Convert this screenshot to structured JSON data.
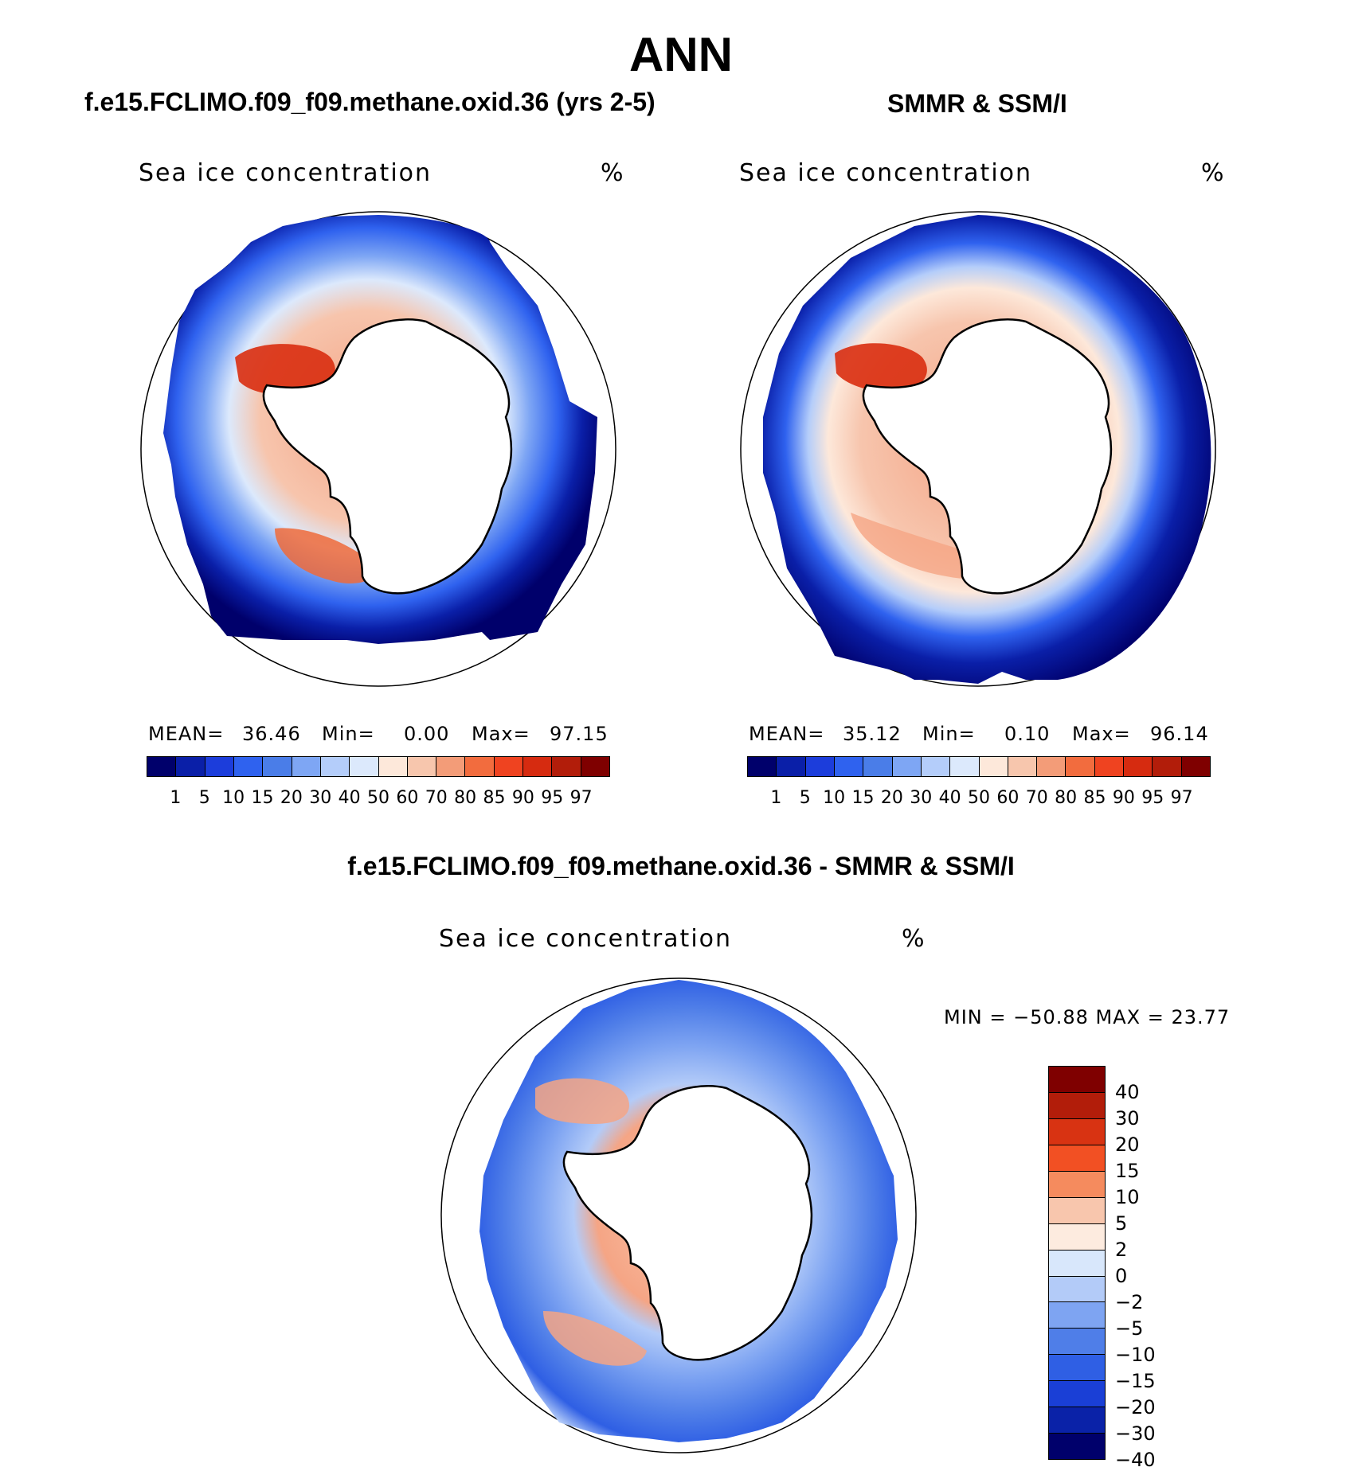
{
  "title": "ANN",
  "panels": [
    {
      "subtitle": "f.e15.FCLIMO.f09_f09.methane.oxid.36 (yrs 2-5)",
      "field": "Sea ice concentration",
      "units": "%",
      "mean_label": "MEAN=",
      "mean": "36.46",
      "min_label": "Min=",
      "min": "0.00",
      "max_label": "Max=",
      "max": "97.15"
    },
    {
      "subtitle": "SMMR & SSM/I",
      "field": "Sea ice concentration",
      "units": "%",
      "mean_label": "MEAN=",
      "mean": "35.12",
      "min_label": "Min=",
      "min": "0.10",
      "max_label": "Max=",
      "max": "96.14"
    },
    {
      "subtitle": "f.e15.FCLIMO.f09_f09.methane.oxid.36 - SMMR & SSM/I",
      "field": "Sea ice concentration",
      "units": "%",
      "minmax": "MIN = −50.88 MAX =   23.77"
    }
  ],
  "colorbar_abs": {
    "colors": [
      "#00006b",
      "#0a1fa8",
      "#1c3ddb",
      "#2f62ef",
      "#4a7de8",
      "#7ea6f4",
      "#b4cdfa",
      "#dce9fc",
      "#fde8da",
      "#f7c6ad",
      "#f39c78",
      "#f26c3e",
      "#ef4320",
      "#d62b10",
      "#b21d0a",
      "#7f0000"
    ],
    "ticks": [
      "1",
      "5",
      "10",
      "15",
      "20",
      "30",
      "40",
      "50",
      "60",
      "70",
      "80",
      "85",
      "90",
      "95",
      "97"
    ]
  },
  "colorbar_diff": {
    "colors": [
      "#7f0000",
      "#b21d0a",
      "#d83312",
      "#f25023",
      "#f58b5e",
      "#f8c6ad",
      "#fdebdf",
      "#d8e7fb",
      "#b3cbf8",
      "#7ea4f2",
      "#4f7ee8",
      "#2f5fe4",
      "#1a3fd6",
      "#0a22a8",
      "#00006b"
    ],
    "ticks": [
      "40",
      "30",
      "20",
      "15",
      "10",
      "5",
      "2",
      "0",
      "−2",
      "−5",
      "−10",
      "−15",
      "−20",
      "−30",
      "−40"
    ]
  }
}
